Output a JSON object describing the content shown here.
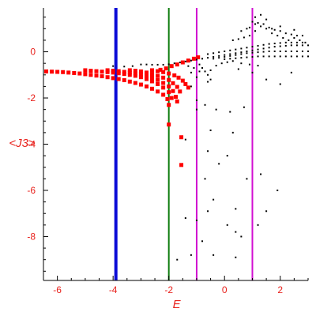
{
  "chart_data": {
    "type": "scatter",
    "xlabel": "E",
    "ylabel": "<J3>",
    "xlim": [
      -6.5,
      3.0
    ],
    "ylim": [
      -9.9,
      1.9
    ],
    "xticks": [
      -6,
      -4,
      -2,
      0,
      2
    ],
    "yticks": [
      0,
      -2,
      -4,
      -6,
      -8
    ],
    "grid": false,
    "vertical_lines": [
      {
        "x": -3.9,
        "color": "#0b0bd6",
        "weight": "thick"
      },
      {
        "x": -2.0,
        "color": "#107d10",
        "weight": "medium"
      },
      {
        "x": -1.0,
        "color": "#d10fd1",
        "weight": "medium"
      },
      {
        "x": 1.0,
        "color": "#d10fd1",
        "weight": "medium"
      }
    ],
    "series": [
      {
        "color": "#ff0000",
        "size": "large",
        "points": [
          [
            -6.4,
            -0.85
          ],
          [
            -6.2,
            -0.86
          ],
          [
            -6.0,
            -0.87
          ],
          [
            -5.8,
            -0.88
          ],
          [
            -5.6,
            -0.9
          ],
          [
            -5.4,
            -0.92
          ],
          [
            -5.2,
            -0.94
          ],
          [
            -5.0,
            -0.97
          ],
          [
            -4.8,
            -1.0
          ],
          [
            -4.6,
            -1.03
          ],
          [
            -4.4,
            -1.06
          ],
          [
            -4.2,
            -1.1
          ],
          [
            -4.0,
            -1.14
          ],
          [
            -3.8,
            -1.18
          ],
          [
            -3.6,
            -1.23
          ],
          [
            -3.4,
            -1.29
          ],
          [
            -3.2,
            -1.35
          ],
          [
            -3.0,
            -1.42
          ],
          [
            -2.8,
            -1.5
          ],
          [
            -2.6,
            -1.6
          ],
          [
            -2.4,
            -1.72
          ],
          [
            -2.2,
            -1.86
          ],
          [
            -2.05,
            -2.05
          ],
          [
            -2.0,
            -2.3
          ],
          [
            -5.0,
            -0.8
          ],
          [
            -4.8,
            -0.82
          ],
          [
            -4.6,
            -0.84
          ],
          [
            -4.4,
            -0.86
          ],
          [
            -4.2,
            -0.88
          ],
          [
            -4.0,
            -0.9
          ],
          [
            -3.8,
            -0.93
          ],
          [
            -3.6,
            -0.96
          ],
          [
            -3.4,
            -1.0
          ],
          [
            -3.2,
            -1.04
          ],
          [
            -3.0,
            -1.1
          ],
          [
            -2.8,
            -1.18
          ],
          [
            -2.6,
            -1.28
          ],
          [
            -2.4,
            -1.4
          ],
          [
            -2.2,
            -1.55
          ],
          [
            -2.0,
            -1.75
          ],
          [
            -1.9,
            -2.0
          ],
          [
            -4.2,
            -0.8
          ],
          [
            -4.0,
            -0.82
          ],
          [
            -3.8,
            -0.84
          ],
          [
            -3.6,
            -0.87
          ],
          [
            -3.4,
            -0.9
          ],
          [
            -3.2,
            -0.94
          ],
          [
            -3.0,
            -0.98
          ],
          [
            -2.8,
            -1.04
          ],
          [
            -2.6,
            -1.12
          ],
          [
            -2.4,
            -1.22
          ],
          [
            -2.2,
            -1.35
          ],
          [
            -2.0,
            -1.5
          ],
          [
            -1.85,
            -1.7
          ],
          [
            -1.75,
            -1.95
          ],
          [
            -1.7,
            -2.15
          ],
          [
            -3.4,
            -0.8
          ],
          [
            -3.2,
            -0.82
          ],
          [
            -3.0,
            -0.85
          ],
          [
            -2.8,
            -0.9
          ],
          [
            -2.6,
            -0.96
          ],
          [
            -2.4,
            -1.04
          ],
          [
            -2.2,
            -1.12
          ],
          [
            -2.0,
            -1.22
          ],
          [
            -1.85,
            -1.36
          ],
          [
            -1.7,
            -1.52
          ],
          [
            -1.6,
            -1.72
          ],
          [
            -2.6,
            -0.8
          ],
          [
            -2.4,
            -0.84
          ],
          [
            -2.2,
            -0.88
          ],
          [
            -2.0,
            -0.94
          ],
          [
            -1.8,
            -1.02
          ],
          [
            -1.65,
            -1.12
          ],
          [
            -1.5,
            -1.25
          ],
          [
            -1.4,
            -1.4
          ],
          [
            -1.3,
            -1.55
          ],
          [
            -1.9,
            -0.62
          ],
          [
            -1.7,
            -0.55
          ],
          [
            -1.5,
            -0.46
          ],
          [
            -1.3,
            -0.38
          ],
          [
            -1.1,
            -0.3
          ],
          [
            -0.95,
            -0.24
          ],
          [
            -2.1,
            -0.72
          ],
          [
            -2.3,
            -0.78
          ],
          [
            -1.55,
            -3.7
          ],
          [
            -1.55,
            -4.9
          ],
          [
            -2.0,
            -3.15
          ]
        ]
      },
      {
        "color": "#000000",
        "size": "small",
        "points": [
          [
            -3.0,
            -0.55
          ],
          [
            -2.8,
            -0.55
          ],
          [
            -2.6,
            -0.56
          ],
          [
            -2.4,
            -0.56
          ],
          [
            -2.2,
            -0.56
          ],
          [
            -2.0,
            -0.54
          ],
          [
            -1.8,
            -0.5
          ],
          [
            -1.6,
            -0.46
          ],
          [
            -1.4,
            -0.42
          ],
          [
            -1.2,
            -0.38
          ],
          [
            -1.0,
            -0.34
          ],
          [
            -0.8,
            -0.3
          ],
          [
            -0.6,
            -0.26
          ],
          [
            -0.4,
            -0.22
          ],
          [
            -0.2,
            -0.18
          ],
          [
            0.0,
            -0.14
          ],
          [
            0.2,
            -0.1
          ],
          [
            0.4,
            -0.06
          ],
          [
            0.6,
            -0.02
          ],
          [
            0.8,
            0.02
          ],
          [
            1.0,
            0.06
          ],
          [
            1.2,
            0.1
          ],
          [
            1.4,
            0.14
          ],
          [
            1.6,
            0.18
          ],
          [
            1.8,
            0.22
          ],
          [
            2.0,
            0.24
          ],
          [
            2.2,
            0.26
          ],
          [
            2.4,
            0.28
          ],
          [
            2.6,
            0.28
          ],
          [
            2.8,
            0.28
          ],
          [
            3.0,
            0.28
          ],
          [
            -0.6,
            -0.1
          ],
          [
            -0.4,
            -0.06
          ],
          [
            -0.2,
            -0.02
          ],
          [
            0.0,
            0.02
          ],
          [
            0.2,
            0.06
          ],
          [
            0.4,
            0.1
          ],
          [
            0.6,
            0.14
          ],
          [
            0.8,
            0.18
          ],
          [
            1.0,
            0.22
          ],
          [
            1.2,
            0.26
          ],
          [
            1.4,
            0.3
          ],
          [
            1.6,
            0.34
          ],
          [
            1.8,
            0.36
          ],
          [
            2.0,
            0.38
          ],
          [
            2.2,
            0.4
          ],
          [
            2.4,
            0.4
          ],
          [
            2.6,
            0.4
          ],
          [
            2.8,
            0.4
          ],
          [
            -0.4,
            -0.3
          ],
          [
            -0.2,
            -0.26
          ],
          [
            0.0,
            -0.22
          ],
          [
            0.2,
            -0.18
          ],
          [
            0.4,
            -0.14
          ],
          [
            0.6,
            -0.1
          ],
          [
            0.8,
            -0.06
          ],
          [
            1.0,
            -0.04
          ],
          [
            1.2,
            -0.02
          ],
          [
            1.4,
            0.0
          ],
          [
            1.6,
            0.02
          ],
          [
            1.8,
            0.02
          ],
          [
            2.0,
            0.02
          ],
          [
            2.2,
            0.02
          ],
          [
            2.4,
            0.02
          ],
          [
            2.6,
            0.02
          ],
          [
            2.8,
            0.02
          ],
          [
            3.0,
            0.02
          ],
          [
            0.0,
            -0.32
          ],
          [
            0.2,
            -0.3
          ],
          [
            0.4,
            -0.28
          ],
          [
            0.6,
            -0.26
          ],
          [
            0.8,
            -0.24
          ],
          [
            1.0,
            -0.22
          ],
          [
            1.2,
            -0.2
          ],
          [
            1.4,
            -0.2
          ],
          [
            1.6,
            -0.2
          ],
          [
            1.8,
            -0.2
          ],
          [
            2.0,
            -0.2
          ],
          [
            2.2,
            -0.2
          ],
          [
            2.4,
            -0.2
          ],
          [
            2.6,
            -0.2
          ],
          [
            2.8,
            -0.2
          ],
          [
            3.0,
            -0.2
          ],
          [
            0.3,
            0.5
          ],
          [
            0.5,
            0.55
          ],
          [
            0.7,
            0.62
          ],
          [
            0.9,
            0.7
          ],
          [
            1.1,
            0.9
          ],
          [
            1.3,
            1.1
          ],
          [
            1.5,
            1.0
          ],
          [
            1.7,
            0.8
          ],
          [
            1.9,
            0.7
          ],
          [
            2.1,
            0.6
          ],
          [
            2.3,
            0.5
          ],
          [
            2.5,
            0.6
          ],
          [
            2.7,
            0.5
          ],
          [
            2.9,
            0.4
          ],
          [
            1.0,
            1.3
          ],
          [
            1.2,
            1.25
          ],
          [
            1.4,
            1.2
          ],
          [
            1.6,
            1.05
          ],
          [
            1.8,
            0.95
          ],
          [
            2.0,
            0.9
          ],
          [
            2.2,
            0.8
          ],
          [
            2.4,
            0.75
          ],
          [
            2.6,
            0.7
          ],
          [
            0.6,
            0.9
          ],
          [
            0.8,
            1.0
          ],
          [
            1.1,
            1.5
          ],
          [
            1.3,
            1.6
          ],
          [
            1.1,
            1.2
          ],
          [
            0.9,
            1.05
          ],
          [
            1.5,
            1.4
          ],
          [
            1.7,
            1.0
          ],
          [
            2.0,
            1.1
          ],
          [
            2.5,
            0.95
          ],
          [
            2.8,
            0.7
          ],
          [
            -0.9,
            -0.55
          ],
          [
            -0.8,
            -0.7
          ],
          [
            -0.7,
            -0.85
          ],
          [
            -0.6,
            -1.0
          ],
          [
            -0.5,
            -0.8
          ],
          [
            -0.3,
            -0.6
          ],
          [
            -0.1,
            -0.5
          ],
          [
            0.1,
            -0.45
          ],
          [
            0.3,
            -0.4
          ],
          [
            0.6,
            -0.5
          ],
          [
            0.9,
            -0.55
          ],
          [
            1.2,
            -0.6
          ],
          [
            -1.2,
            -0.9
          ],
          [
            -1.0,
            -1.1
          ],
          [
            -0.5,
            -1.2
          ],
          [
            -1.2,
            -1.5
          ],
          [
            -1.0,
            -2.1
          ],
          [
            -0.7,
            -2.3
          ],
          [
            -0.3,
            -2.5
          ],
          [
            0.2,
            -2.6
          ],
          [
            0.7,
            -2.4
          ],
          [
            -1.0,
            -2.5
          ],
          [
            -0.5,
            -3.4
          ],
          [
            0.3,
            -3.5
          ],
          [
            -1.4,
            -3.8
          ],
          [
            -0.6,
            -4.3
          ],
          [
            0.1,
            -4.5
          ],
          [
            -0.2,
            -4.85
          ],
          [
            0.8,
            -5.5
          ],
          [
            -0.7,
            -5.5
          ],
          [
            1.3,
            -5.3
          ],
          [
            1.9,
            -6.0
          ],
          [
            -0.4,
            -6.4
          ],
          [
            0.4,
            -6.8
          ],
          [
            1.5,
            -6.9
          ],
          [
            -0.6,
            -6.9
          ],
          [
            0.1,
            -7.5
          ],
          [
            -1.4,
            -7.2
          ],
          [
            -1.0,
            -7.3
          ],
          [
            1.2,
            -7.5
          ],
          [
            0.6,
            -8.0
          ],
          [
            0.4,
            -7.8
          ],
          [
            -0.8,
            -8.2
          ],
          [
            0.4,
            -8.9
          ],
          [
            -1.2,
            -8.8
          ],
          [
            -0.4,
            -8.8
          ],
          [
            -1.7,
            -9.0
          ],
          [
            -4.0,
            -0.62
          ],
          [
            -3.6,
            -0.64
          ],
          [
            -3.3,
            -0.62
          ],
          [
            -1.3,
            -0.62
          ],
          [
            -1.1,
            -0.7
          ],
          [
            -0.9,
            -0.85
          ],
          [
            -0.6,
            -1.3
          ],
          [
            0.5,
            -0.75
          ],
          [
            1.0,
            -0.9
          ],
          [
            1.5,
            -1.2
          ],
          [
            2.4,
            -0.9
          ],
          [
            2.0,
            -1.4
          ]
        ]
      }
    ]
  }
}
